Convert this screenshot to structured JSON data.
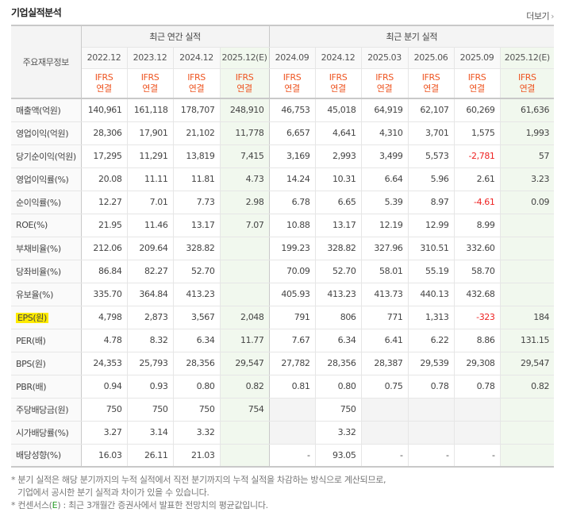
{
  "header": {
    "title": "기업실적분석",
    "more": "더보기",
    "more_arrow": "›"
  },
  "table": {
    "corner": "주요재무정보",
    "annual_label": "최근 연간 실적",
    "quarter_label": "최근 분기 실적",
    "annual_periods": [
      "2022.12",
      "2023.12",
      "2024.12",
      "2025.12(E)"
    ],
    "quarter_periods": [
      "2024.09",
      "2024.12",
      "2025.03",
      "2025.06",
      "2025.09",
      "2025.12(E)"
    ],
    "ifrs_top": "IFRS",
    "ifrs_bottom": "연결",
    "rows": [
      {
        "label": "매출액(억원)",
        "values": [
          "140,961",
          "161,118",
          "178,707",
          "248,910",
          "46,753",
          "45,018",
          "64,919",
          "62,107",
          "60,269",
          "61,636"
        ]
      },
      {
        "label": "영업이익(억원)",
        "values": [
          "28,306",
          "17,901",
          "21,102",
          "11,778",
          "6,657",
          "4,641",
          "4,310",
          "3,701",
          "1,575",
          "1,993"
        ]
      },
      {
        "label": "당기순이익(억원)",
        "values": [
          "17,295",
          "11,291",
          "13,819",
          "7,415",
          "3,169",
          "2,993",
          "3,499",
          "5,573",
          "-2,781",
          "57"
        ]
      },
      {
        "label": "영업이익률(%)",
        "values": [
          "20.08",
          "11.11",
          "11.81",
          "4.73",
          "14.24",
          "10.31",
          "6.64",
          "5.96",
          "2.61",
          "3.23"
        ]
      },
      {
        "label": "순이익률(%)",
        "values": [
          "12.27",
          "7.01",
          "7.73",
          "2.98",
          "6.78",
          "6.65",
          "5.39",
          "8.97",
          "-4.61",
          "0.09"
        ]
      },
      {
        "label": "ROE(%)",
        "values": [
          "21.95",
          "11.46",
          "13.17",
          "7.07",
          "10.88",
          "13.17",
          "12.19",
          "12.99",
          "8.99",
          ""
        ]
      },
      {
        "label": "부채비율(%)",
        "values": [
          "212.06",
          "209.64",
          "328.82",
          "",
          "199.23",
          "328.82",
          "327.96",
          "310.51",
          "332.60",
          ""
        ]
      },
      {
        "label": "당좌비율(%)",
        "values": [
          "86.84",
          "82.27",
          "52.70",
          "",
          "70.09",
          "52.70",
          "58.01",
          "55.19",
          "58.70",
          ""
        ]
      },
      {
        "label": "유보율(%)",
        "values": [
          "335.70",
          "364.84",
          "413.23",
          "",
          "405.93",
          "413.23",
          "413.73",
          "440.13",
          "432.68",
          ""
        ]
      },
      {
        "label": "EPS(원)",
        "values": [
          "4,798",
          "2,873",
          "3,567",
          "2,048",
          "791",
          "806",
          "771",
          "1,313",
          "-323",
          "184"
        ]
      },
      {
        "label": "PER(배)",
        "values": [
          "4.78",
          "8.32",
          "6.34",
          "11.77",
          "7.67",
          "6.34",
          "6.41",
          "6.22",
          "8.86",
          "131.15"
        ]
      },
      {
        "label": "BPS(원)",
        "values": [
          "24,353",
          "25,793",
          "28,356",
          "29,547",
          "27,782",
          "28,356",
          "28,387",
          "29,539",
          "29,308",
          "29,547"
        ]
      },
      {
        "label": "PBR(배)",
        "values": [
          "0.94",
          "0.93",
          "0.80",
          "0.82",
          "0.81",
          "0.80",
          "0.75",
          "0.78",
          "0.78",
          "0.82"
        ]
      },
      {
        "label": "주당배당금(원)",
        "values": [
          "750",
          "750",
          "750",
          "754",
          "",
          "750",
          "",
          "",
          "",
          ""
        ]
      },
      {
        "label": "시가배당률(%)",
        "values": [
          "3.27",
          "3.14",
          "3.32",
          "",
          "",
          "3.32",
          "",
          "",
          "",
          ""
        ]
      },
      {
        "label": "배당성향(%)",
        "values": [
          "16.03",
          "26.11",
          "21.03",
          "",
          "-",
          "93.05",
          "-",
          "-",
          "-",
          ""
        ]
      }
    ]
  },
  "notes": {
    "line1": "* 분기 실적은 해당 분기까지의 누적 실적에서 직전 분기까지의 누적 실적을 차감하는 방식으로 계산되므로,",
    "line2": "기업에서 공시한 분기 실적과 차이가 있을 수 있습니다.",
    "line3_prefix": "* 컨센서스(",
    "line3_mark": "E",
    "line3_suffix": ") : 최근 3개월간 증권사에서 발표한 전망치의 평균값입니다."
  },
  "colors": {
    "negative": "#ee2222",
    "estimate_bg": "#f1f8ee",
    "ifrs": "#ee5522",
    "highlight": "#ffeb00"
  },
  "highlighted_row": "EPS(원)"
}
